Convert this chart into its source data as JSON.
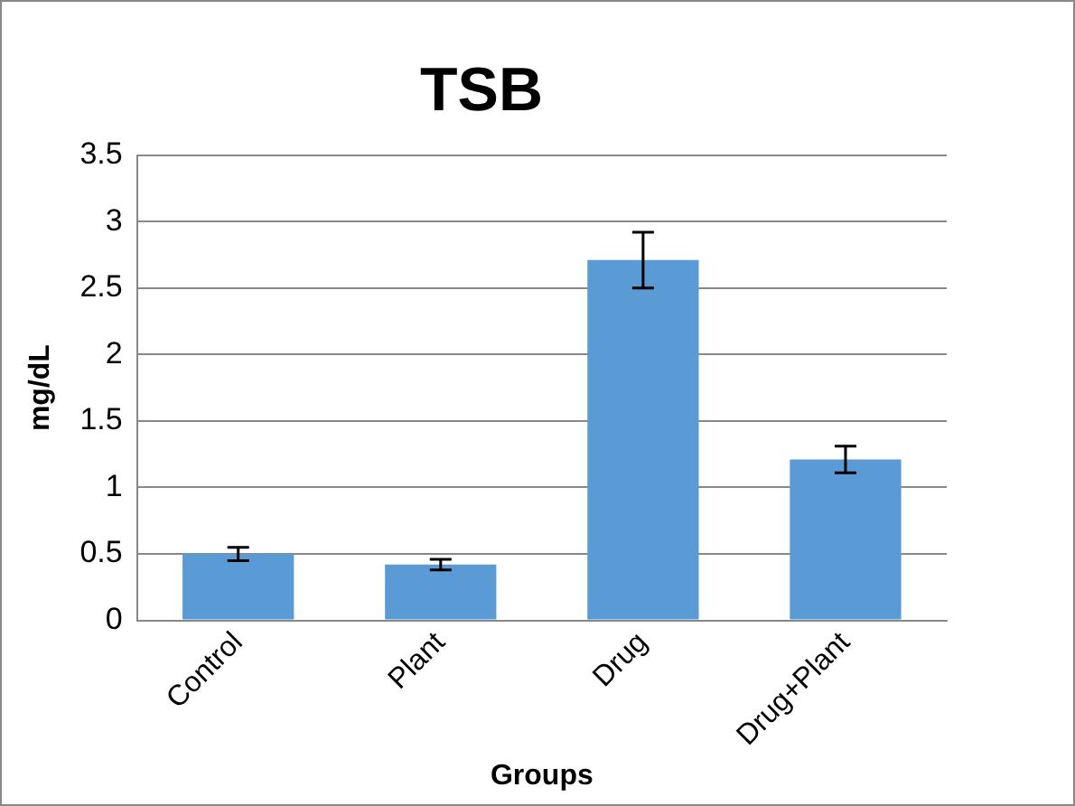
{
  "chart_data": {
    "type": "bar",
    "title": "TSB",
    "xlabel": "Groups",
    "ylabel": "mg/dL",
    "categories": [
      "Control",
      "Plant",
      "Drug",
      "Drug+Plant"
    ],
    "values": [
      0.5,
      0.42,
      2.71,
      1.21
    ],
    "errors": [
      0.05,
      0.04,
      0.21,
      0.1
    ],
    "color": "#5b9bd5",
    "ylim": [
      0,
      3.5
    ],
    "yticks": [
      0,
      0.5,
      1,
      1.5,
      2,
      2.5,
      3,
      3.5
    ],
    "grid": "y"
  }
}
